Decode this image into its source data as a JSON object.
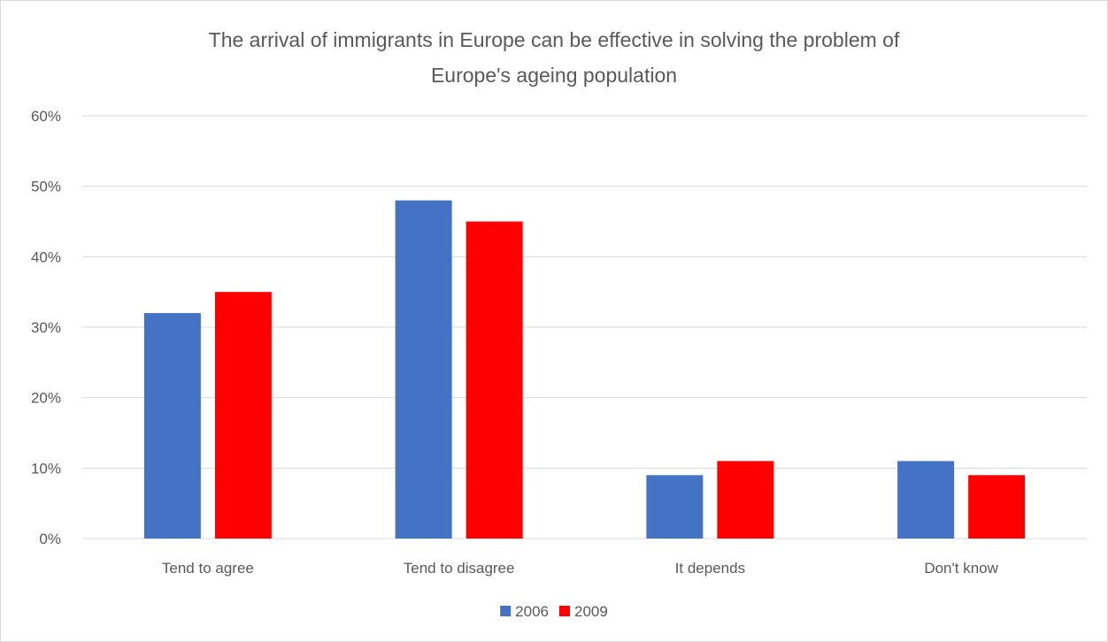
{
  "chart_data": {
    "type": "bar",
    "title": "The arrival of immigrants in Europe can be effective in solving the problem of Europe's ageing population",
    "title_lines": [
      "The arrival of immigrants in Europe can be effective in solving the problem of",
      "Europe's ageing population"
    ],
    "xlabel": "",
    "ylabel": "",
    "categories": [
      "Tend to agree",
      "Tend to disagree",
      "It depends",
      "Don't know"
    ],
    "series": [
      {
        "name": "2006",
        "values": [
          32,
          48,
          9,
          11
        ],
        "color": "#4472c4"
      },
      {
        "name": "2009",
        "values": [
          35,
          45,
          11,
          9
        ],
        "color": "#ff0000"
      }
    ],
    "ylim": [
      0,
      60
    ],
    "yticks": [
      0,
      10,
      20,
      30,
      40,
      50,
      60
    ],
    "ytick_labels": [
      "0%",
      "10%",
      "20%",
      "30%",
      "40%",
      "50%",
      "60%"
    ],
    "grid": true,
    "legend_position": "bottom",
    "colors": {
      "gridline": "#d9d9d9",
      "text": "#595959"
    }
  }
}
